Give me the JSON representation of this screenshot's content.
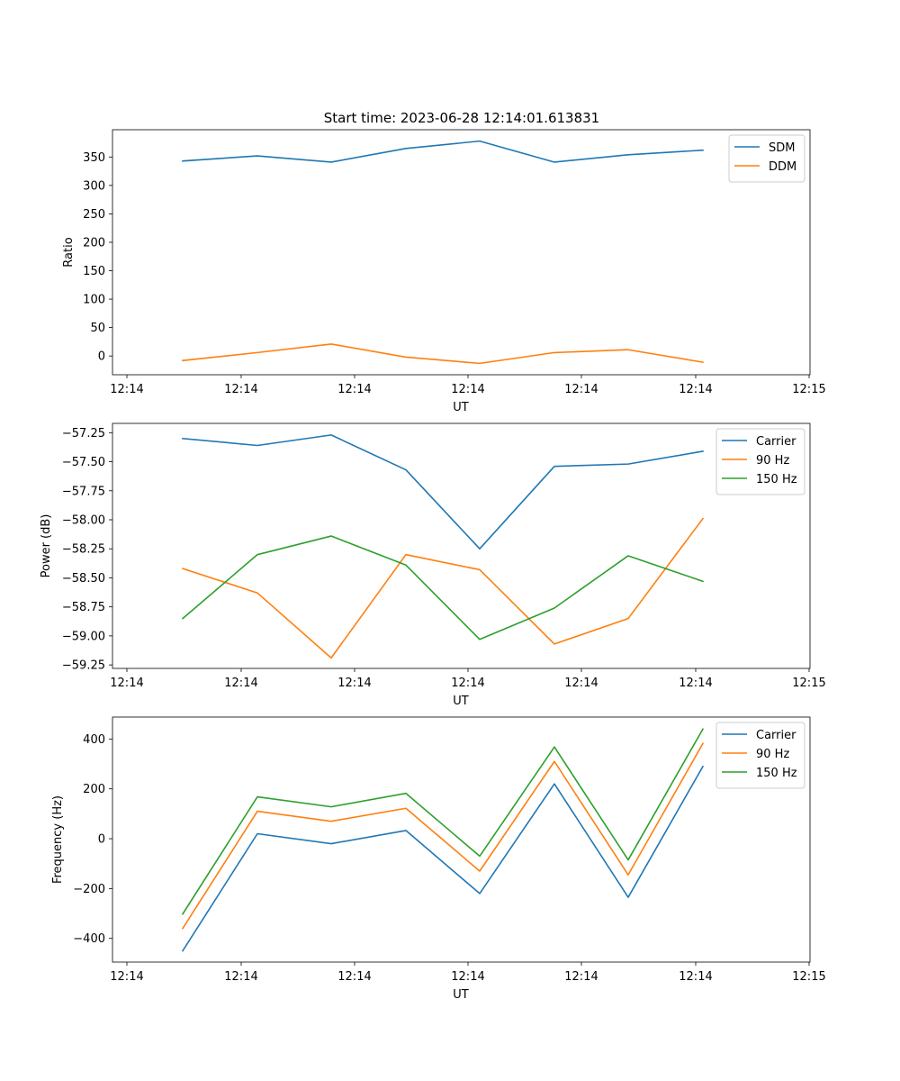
{
  "figure_title": "Start time: 2023-06-28 12:14:01.613831",
  "colors": {
    "blue": "#1f77b4",
    "orange": "#ff7f0e",
    "green": "#2ca02c"
  },
  "chart_data": [
    {
      "type": "line",
      "title": "Start time: 2023-06-28 12:14:01.613831",
      "xlabel": "UT",
      "ylabel": "Ratio",
      "x_tick_labels": [
        "12:14",
        "12:14",
        "12:14",
        "12:14",
        "12:14",
        "12:14",
        "12:15"
      ],
      "y_ticks": [
        0,
        50,
        100,
        150,
        200,
        250,
        300,
        350
      ],
      "ylim": [
        -33,
        398
      ],
      "grid": false,
      "legend": "top-right",
      "series": [
        {
          "name": "SDM",
          "color": "#1f77b4",
          "values": [
            343,
            352,
            341,
            365,
            378,
            341,
            354,
            362
          ]
        },
        {
          "name": "DDM",
          "color": "#ff7f0e",
          "values": [
            -8,
            6,
            21,
            -2,
            -13,
            6,
            11,
            -11
          ]
        }
      ]
    },
    {
      "type": "line",
      "title": "",
      "xlabel": "UT",
      "ylabel": "Power (dB)",
      "x_tick_labels": [
        "12:14",
        "12:14",
        "12:14",
        "12:14",
        "12:14",
        "12:14",
        "12:15"
      ],
      "y_ticks": [
        -57.25,
        -57.5,
        -57.75,
        -58.0,
        -58.25,
        -58.5,
        -58.75,
        -59.0,
        -59.25
      ],
      "y_tick_labels": [
        "−57.25",
        "−57.50",
        "−57.75",
        "−58.00",
        "−58.25",
        "−58.50",
        "−58.75",
        "−59.00",
        "−59.25"
      ],
      "ylim": [
        -59.28,
        -57.17
      ],
      "grid": false,
      "legend": "top-right",
      "series": [
        {
          "name": "Carrier",
          "color": "#1f77b4",
          "values": [
            -57.3,
            -57.36,
            -57.27,
            -57.57,
            -58.25,
            -57.54,
            -57.52,
            -57.41
          ]
        },
        {
          "name": "90 Hz",
          "color": "#ff7f0e",
          "values": [
            -58.42,
            -58.63,
            -59.19,
            -58.3,
            -58.43,
            -59.07,
            -58.85,
            -57.99
          ]
        },
        {
          "name": "150 Hz",
          "color": "#2ca02c",
          "values": [
            -58.85,
            -58.3,
            -58.14,
            -58.39,
            -59.03,
            -58.76,
            -58.31,
            -58.53
          ]
        }
      ]
    },
    {
      "type": "line",
      "title": "",
      "xlabel": "UT",
      "ylabel": "Frequency (Hz)",
      "x_tick_labels": [
        "12:14",
        "12:14",
        "12:14",
        "12:14",
        "12:14",
        "12:14",
        "12:15"
      ],
      "y_ticks": [
        -400,
        -200,
        0,
        200,
        400
      ],
      "y_tick_labels": [
        "−400",
        "−200",
        "0",
        "200",
        "400"
      ],
      "ylim": [
        -495,
        488
      ],
      "grid": false,
      "legend": "top-right",
      "series": [
        {
          "name": "Carrier",
          "color": "#1f77b4",
          "values": [
            -450,
            20,
            -20,
            33,
            -220,
            220,
            -235,
            290
          ]
        },
        {
          "name": "90 Hz",
          "color": "#ff7f0e",
          "values": [
            -360,
            110,
            70,
            122,
            -130,
            310,
            -145,
            382
          ]
        },
        {
          "name": "150 Hz",
          "color": "#2ca02c",
          "values": [
            -302,
            168,
            128,
            182,
            -70,
            368,
            -85,
            440
          ]
        }
      ]
    }
  ]
}
